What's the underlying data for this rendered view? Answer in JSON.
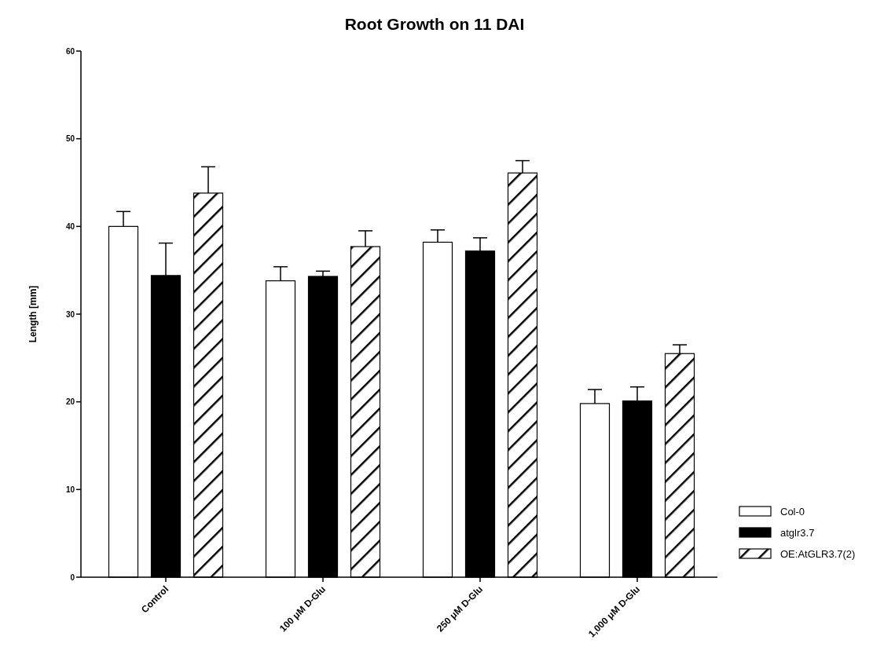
{
  "chart_data": {
    "type": "bar",
    "title": "Root Growth on 11 DAI",
    "ylabel": "Length [mm]",
    "categories": [
      "Control",
      "100 μM D-Glu",
      "250 μM D-Glu",
      "1,000 μM D-Glu"
    ],
    "series": [
      {
        "name": "Col-0",
        "color": "#ffffff",
        "values": [
          40.0,
          33.8,
          38.2,
          19.8
        ],
        "errors": [
          [
            40.0,
            41.7
          ],
          [
            33.8,
            35.4
          ],
          [
            38.2,
            39.6
          ],
          [
            19.8,
            21.4
          ]
        ]
      },
      {
        "name": "atglr3.7",
        "color": "#000000",
        "values": [
          34.4,
          34.3,
          37.2,
          20.1
        ],
        "errors": [
          [
            34.4,
            38.1
          ],
          [
            34.3,
            34.9
          ],
          [
            37.2,
            38.7
          ],
          [
            20.1,
            21.7
          ]
        ]
      },
      {
        "name": "OE:AtGLR3.7(2)",
        "color": "#000000",
        "values": [
          43.8,
          37.7,
          46.1,
          25.5
        ],
        "errors": [
          [
            43.8,
            46.8
          ],
          [
            37.7,
            39.5
          ],
          [
            46.1,
            47.5
          ],
          [
            25.5,
            26.5
          ]
        ]
      }
    ],
    "ylim": [
      0,
      60
    ],
    "yticks": [
      0,
      10,
      20,
      30,
      40,
      50,
      60
    ],
    "grid": false,
    "legend": "bottom right"
  }
}
